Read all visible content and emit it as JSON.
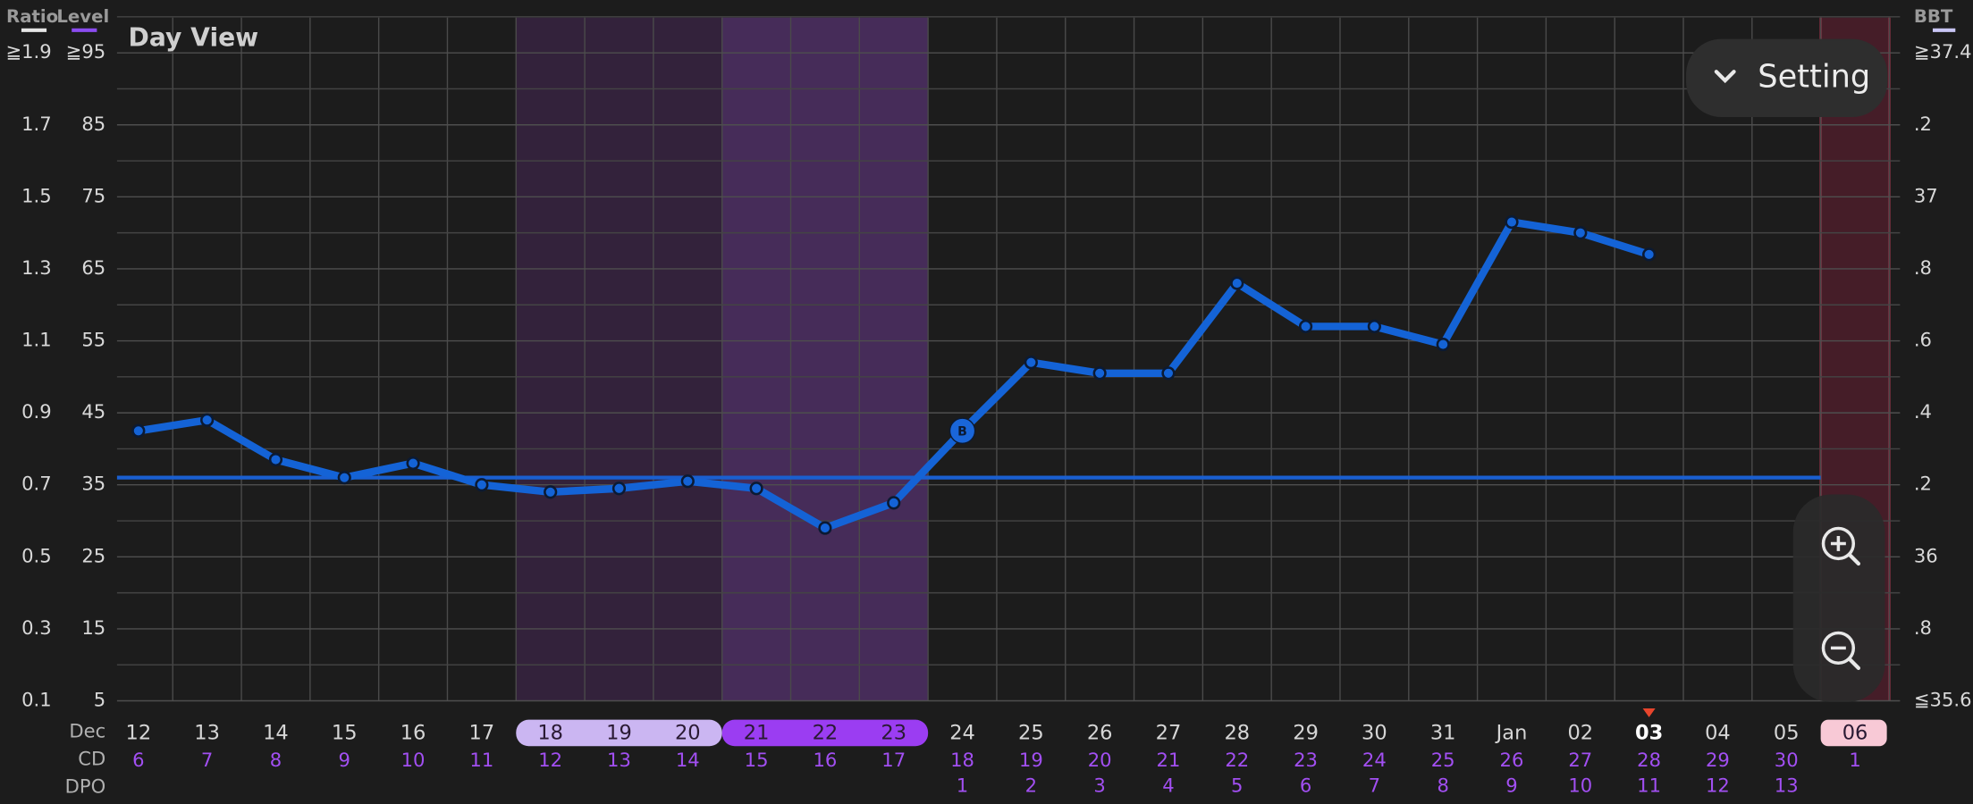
{
  "chart_data": {
    "type": "line",
    "title": "Day View",
    "month": "Dec",
    "row_labels": {
      "cd": "CD",
      "dpo": "DPO"
    },
    "categories": [
      "12",
      "13",
      "14",
      "15",
      "16",
      "17",
      "18",
      "19",
      "20",
      "21",
      "22",
      "23",
      "24",
      "25",
      "26",
      "27",
      "28",
      "29",
      "30",
      "31",
      "Jan",
      "02",
      "03",
      "04",
      "05",
      "06"
    ],
    "cd": [
      6,
      7,
      8,
      9,
      10,
      11,
      12,
      13,
      14,
      15,
      16,
      17,
      18,
      19,
      20,
      21,
      22,
      23,
      24,
      25,
      26,
      27,
      28,
      29,
      30,
      1
    ],
    "dpo": [
      null,
      null,
      null,
      null,
      null,
      null,
      null,
      null,
      null,
      null,
      null,
      null,
      1,
      2,
      3,
      4,
      5,
      6,
      7,
      8,
      9,
      10,
      11,
      12,
      13,
      null
    ],
    "today": "03",
    "axes": [
      {
        "name": "Ratio",
        "color": "#e6e6e6",
        "lim": [
          0.1,
          1.9
        ],
        "ticks": [
          {
            "value": 1.9,
            "label": "≧1.9"
          },
          1.7,
          1.5,
          1.3,
          1.1,
          0.9,
          0.7,
          0.5,
          0.3,
          0.1
        ]
      },
      {
        "name": "Level",
        "color": "#8b4cf0",
        "lim": [
          5,
          95
        ],
        "ticks": [
          {
            "value": 95,
            "label": "≧95"
          },
          85,
          75,
          65,
          55,
          45,
          35,
          25,
          15,
          5
        ]
      }
    ],
    "ylim": [
      35.6,
      37.4
    ],
    "yticks": [
      {
        "value": 37.4,
        "label": "≧37.4"
      },
      {
        "value": 37.2,
        "label": ".2"
      },
      37,
      {
        "value": 36.8,
        "label": ".8"
      },
      {
        "value": 36.6,
        "label": ".6"
      },
      {
        "value": 36.4,
        "label": ".4"
      },
      {
        "value": 36.2,
        "label": ".2"
      },
      36,
      {
        "value": 35.8,
        "label": ".8"
      },
      {
        "value": 35.6,
        "label": "≦35.6"
      }
    ],
    "y_color": "#c9c6f5",
    "series": [
      {
        "name": "BBT",
        "color": "#1463d6",
        "values": [
          36.35,
          36.38,
          36.27,
          36.22,
          36.26,
          36.2,
          36.18,
          36.19,
          36.21,
          36.19,
          36.08,
          36.15,
          36.35,
          36.54,
          36.51,
          36.51,
          36.76,
          36.64,
          36.64,
          36.59,
          36.93,
          36.9,
          36.84,
          null,
          null,
          null
        ]
      }
    ],
    "coverline": 36.22,
    "marker": {
      "label": "B",
      "category": "24"
    },
    "grid": true
  },
  "controls": {
    "setting": "Setting"
  }
}
